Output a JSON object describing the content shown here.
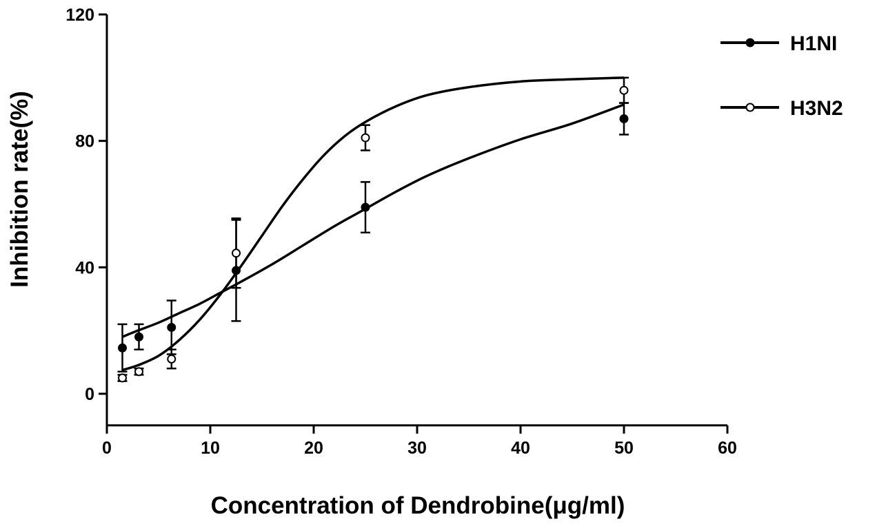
{
  "chart_data": {
    "type": "scatter",
    "title": "",
    "xlabel": "Concentration of Dendrobine(μg/ml)",
    "ylabel": "Inhibition rate(%)",
    "xlim": [
      0,
      60
    ],
    "ylim": [
      -10,
      120
    ],
    "xticks": [
      0,
      10,
      20,
      30,
      40,
      50,
      60
    ],
    "yticks": [
      0,
      40,
      80,
      120
    ],
    "grid": false,
    "legend_position": "top-right",
    "series": [
      {
        "name": "H1NI",
        "marker": "filled-circle",
        "color": "#000000",
        "points": [
          {
            "x": 1.5,
            "y": 14.5,
            "err": 7.5
          },
          {
            "x": 3.1,
            "y": 18,
            "err": 4
          },
          {
            "x": 6.25,
            "y": 21,
            "err": 8.5
          },
          {
            "x": 12.5,
            "y": 39,
            "err": 16
          },
          {
            "x": 25,
            "y": 59,
            "err": 8
          },
          {
            "x": 50,
            "y": 87,
            "err": 5
          }
        ],
        "fit_curve": [
          {
            "x": 1.5,
            "y": 18
          },
          {
            "x": 3,
            "y": 20
          },
          {
            "x": 5,
            "y": 22.5
          },
          {
            "x": 7,
            "y": 25.5
          },
          {
            "x": 9,
            "y": 28.5
          },
          {
            "x": 11,
            "y": 32
          },
          {
            "x": 13,
            "y": 35.5
          },
          {
            "x": 16,
            "y": 41
          },
          {
            "x": 19,
            "y": 47
          },
          {
            "x": 22,
            "y": 53
          },
          {
            "x": 25,
            "y": 58.5
          },
          {
            "x": 28,
            "y": 64
          },
          {
            "x": 31,
            "y": 69
          },
          {
            "x": 35,
            "y": 74.5
          },
          {
            "x": 40,
            "y": 80.5
          },
          {
            "x": 45,
            "y": 85.5
          },
          {
            "x": 50,
            "y": 91.5
          }
        ]
      },
      {
        "name": "H3N2",
        "marker": "open-circle",
        "color": "#000000",
        "points": [
          {
            "x": 1.5,
            "y": 5,
            "err": 1
          },
          {
            "x": 3.1,
            "y": 7,
            "err": 1
          },
          {
            "x": 6.25,
            "y": 11,
            "err": 3
          },
          {
            "x": 12.5,
            "y": 44.5,
            "err": 11
          },
          {
            "x": 25,
            "y": 81,
            "err": 4
          },
          {
            "x": 50,
            "y": 96,
            "err": 4
          }
        ],
        "fit_curve": [
          {
            "x": 1.5,
            "y": 7.5
          },
          {
            "x": 3,
            "y": 9
          },
          {
            "x": 5,
            "y": 12
          },
          {
            "x": 7,
            "y": 17
          },
          {
            "x": 9,
            "y": 23.5
          },
          {
            "x": 11,
            "y": 31.5
          },
          {
            "x": 13,
            "y": 40.5
          },
          {
            "x": 15,
            "y": 50
          },
          {
            "x": 17,
            "y": 59.5
          },
          {
            "x": 19,
            "y": 68
          },
          {
            "x": 21,
            "y": 75.5
          },
          {
            "x": 23,
            "y": 81.5
          },
          {
            "x": 25,
            "y": 86
          },
          {
            "x": 28,
            "y": 91
          },
          {
            "x": 31,
            "y": 94.5
          },
          {
            "x": 35,
            "y": 97
          },
          {
            "x": 40,
            "y": 98.8
          },
          {
            "x": 45,
            "y": 99.5
          },
          {
            "x": 50,
            "y": 100
          }
        ]
      }
    ]
  }
}
